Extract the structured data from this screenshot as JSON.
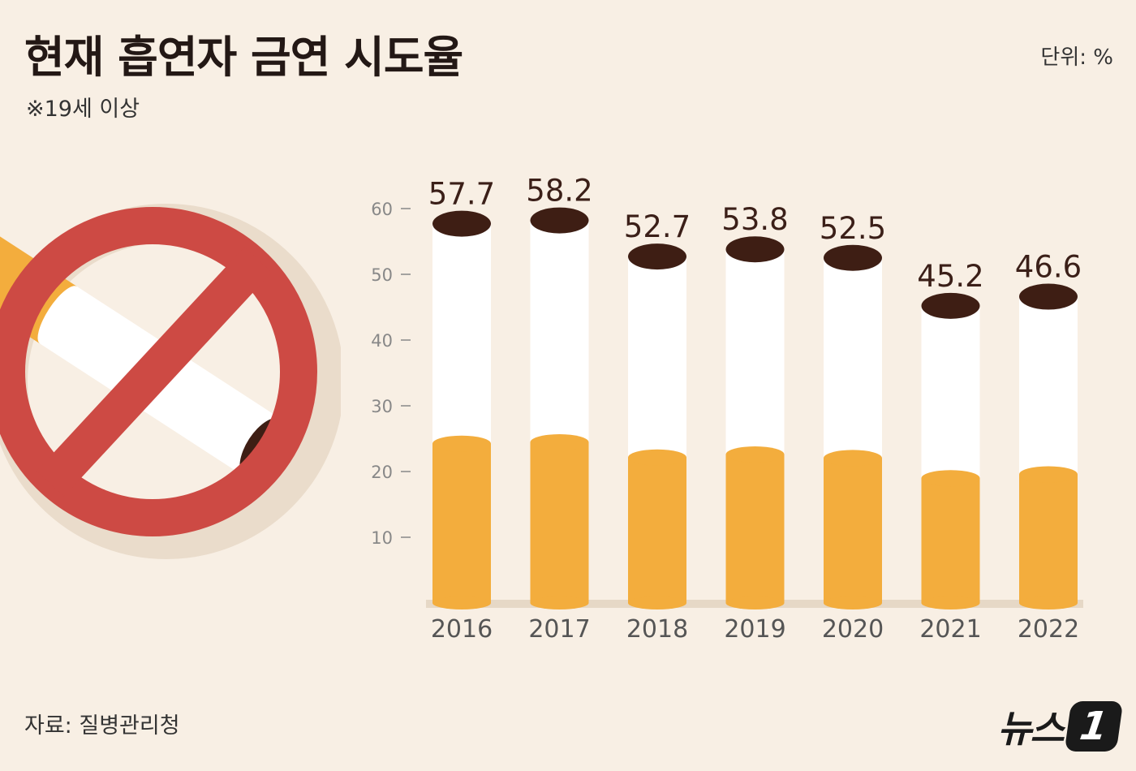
{
  "header": {
    "title": "현재 흡연자 금연 시도율",
    "subtitle": "※19세 이상",
    "unit": "단위: %"
  },
  "footer": {
    "source": "자료: 질병관리청",
    "logo_text": "뉴스",
    "logo_mark": "1"
  },
  "illustration": {
    "icon": "no-smoking-icon",
    "colors": {
      "ring": "#cd4a44",
      "filter": "#f3ad3d",
      "paper": "#ffffff",
      "ash": "#3e1e14"
    }
  },
  "chart_data": {
    "type": "bar",
    "categories": [
      "2016",
      "2017",
      "2018",
      "2019",
      "2020",
      "2021",
      "2022"
    ],
    "values": [
      57.7,
      58.2,
      52.7,
      53.8,
      52.5,
      45.2,
      46.6
    ],
    "ylim": [
      0,
      60
    ],
    "yticks": [
      10,
      20,
      30,
      40,
      50,
      60
    ],
    "title": "현재 흡연자 금연 시도율",
    "xlabel": "",
    "ylabel": "",
    "grid": false,
    "colors": {
      "paper": "#ffffff",
      "filter": "#f3ad3d",
      "cap": "#3e1e14",
      "text": "#3b1f18",
      "axis": "#888888"
    }
  }
}
